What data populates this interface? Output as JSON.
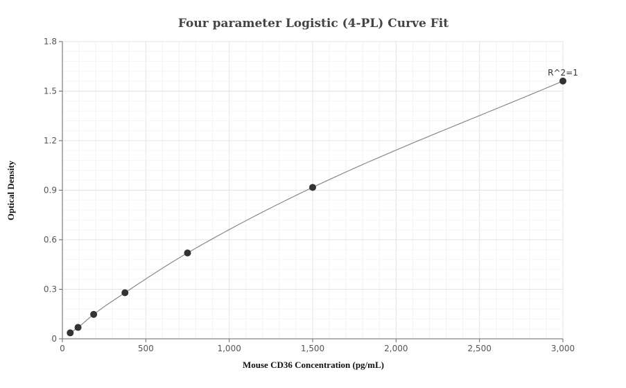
{
  "chart_data": {
    "type": "scatter",
    "title": "Four parameter Logistic (4-PL) Curve Fit",
    "xlabel": "Mouse CD36 Concentration (pg/mL)",
    "ylabel": "Optical Density",
    "xlim": [
      0,
      3000
    ],
    "ylim": [
      0,
      1.8
    ],
    "x_ticks": [
      0,
      500,
      1000,
      1500,
      2000,
      2500,
      3000
    ],
    "x_tick_labels": [
      "0",
      "500",
      "1,000",
      "1,500",
      "2,000",
      "2,500",
      "3,000"
    ],
    "y_ticks": [
      0,
      0.3,
      0.6,
      0.9,
      1.2,
      1.5,
      1.8
    ],
    "y_tick_labels": [
      "0",
      "0.3",
      "0.6",
      "0.9",
      "1.2",
      "1.5",
      "1.8"
    ],
    "grid": true,
    "series": [
      {
        "points": [
          {
            "x": 46.875,
            "y": 0.036
          },
          {
            "x": 93.75,
            "y": 0.069
          },
          {
            "x": 187.5,
            "y": 0.148
          },
          {
            "x": 375,
            "y": 0.279
          },
          {
            "x": 750,
            "y": 0.52
          },
          {
            "x": 1500,
            "y": 0.917
          },
          {
            "x": 3000,
            "y": 1.561
          }
        ]
      }
    ],
    "annotations": [
      {
        "text": "R^2=1",
        "x": 3000,
        "y": 1.561
      }
    ],
    "colors": {
      "points": "#333333",
      "curve": "#888888",
      "grid": "#e6e6e6",
      "axis": "#666666"
    }
  }
}
